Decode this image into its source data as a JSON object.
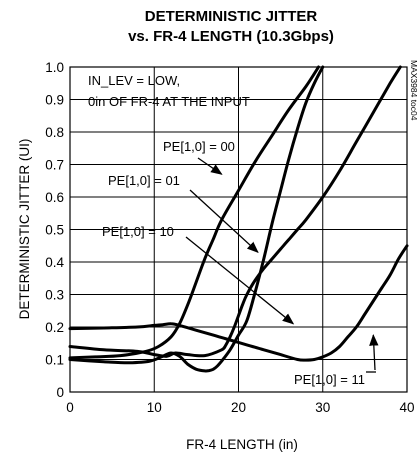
{
  "chart_data": {
    "type": "line",
    "title": [
      "DETERMINISTIC JITTER",
      "vs. FR-4 LENGTH (10.3Gbps)"
    ],
    "xlabel": "FR-4 LENGTH (in)",
    "ylabel": "DETERMINISTIC JITTER (UI)",
    "xlim": [
      0,
      40
    ],
    "ylim": [
      0,
      1.0
    ],
    "x_ticks": [
      0,
      10,
      20,
      30,
      40
    ],
    "y_ticks": [
      "0",
      "0.1",
      "0.2",
      "0.3",
      "0.4",
      "0.5",
      "0.6",
      "0.7",
      "0.8",
      "0.9",
      "1.0"
    ],
    "grid": true,
    "legend": "none",
    "figure_id": "MAX3984 toc04",
    "annotations": {
      "condition_lines": [
        "IN_LEV = LOW,",
        "0in OF FR-4 AT THE INPUT"
      ],
      "pe00": "PE[1,0] = 00",
      "pe01": "PE[1,0] = 01",
      "pe10": "PE[1,0] = 10",
      "pe11": "PE[1,0] = 11"
    },
    "series": [
      {
        "label": "PE[1,0] = 00",
        "x": [
          0,
          3,
          6,
          9,
          10.5,
          12,
          13,
          14,
          15,
          16,
          17,
          18,
          20,
          22,
          24,
          26,
          28,
          29.5
        ],
        "y": [
          0.105,
          0.108,
          0.112,
          0.125,
          0.14,
          0.17,
          0.21,
          0.27,
          0.34,
          0.41,
          0.47,
          0.53,
          0.62,
          0.71,
          0.79,
          0.87,
          0.94,
          1.0
        ]
      },
      {
        "label": "PE[1,0] = 01",
        "x": [
          0,
          4,
          8,
          10,
          11.5,
          12.5,
          14,
          16,
          18,
          18.5,
          19,
          19.5,
          20,
          20.5,
          21,
          22,
          23,
          24,
          25,
          26,
          27,
          28,
          30,
          32,
          34,
          36,
          38,
          39.2
        ],
        "y": [
          0.14,
          0.13,
          0.125,
          0.115,
          0.11,
          0.12,
          0.115,
          0.112,
          0.13,
          0.145,
          0.17,
          0.2,
          0.235,
          0.27,
          0.3,
          0.345,
          0.38,
          0.41,
          0.44,
          0.47,
          0.5,
          0.53,
          0.6,
          0.68,
          0.77,
          0.86,
          0.95,
          1.0
        ]
      },
      {
        "label": "PE[1,0] = 10",
        "x": [
          0,
          4,
          7,
          9.5,
          11,
          12,
          13,
          14,
          15,
          16,
          16.5,
          17,
          17.5,
          18,
          19,
          20,
          21,
          22,
          23,
          24,
          25,
          26,
          27,
          28,
          29,
          30
        ],
        "y": [
          0.1,
          0.093,
          0.09,
          0.095,
          0.11,
          0.12,
          0.11,
          0.085,
          0.07,
          0.065,
          0.066,
          0.07,
          0.08,
          0.095,
          0.13,
          0.175,
          0.22,
          0.31,
          0.41,
          0.52,
          0.62,
          0.72,
          0.81,
          0.89,
          0.95,
          1.0
        ]
      },
      {
        "label": "PE[1,0] = 11",
        "x": [
          0,
          4,
          8,
          10,
          11,
          12,
          13,
          15,
          17,
          19,
          21,
          23,
          25,
          27,
          28,
          29,
          30,
          31,
          32,
          33,
          34,
          35,
          36,
          37,
          38,
          39,
          40
        ],
        "y": [
          0.195,
          0.197,
          0.2,
          0.205,
          0.207,
          0.21,
          0.205,
          0.19,
          0.175,
          0.16,
          0.145,
          0.13,
          0.115,
          0.1,
          0.098,
          0.1,
          0.108,
          0.12,
          0.14,
          0.17,
          0.2,
          0.24,
          0.28,
          0.32,
          0.36,
          0.41,
          0.45
        ]
      }
    ]
  }
}
